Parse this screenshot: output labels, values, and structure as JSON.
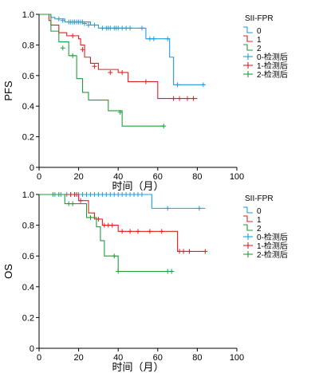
{
  "chart_data": [
    {
      "type": "line",
      "title": "",
      "xlabel": "时间（月）",
      "ylabel": "PFS",
      "xlim": [
        0,
        100
      ],
      "ylim": [
        0,
        1.0
      ],
      "xticks": [
        "0",
        "20",
        "40",
        "60",
        "80",
        "100"
      ],
      "yticks": [
        "0",
        "0.2",
        "0.4",
        "0.6",
        "0.8",
        "1.0"
      ],
      "grid": false,
      "legend_position": "top-right",
      "legend_title": "SII-FPR",
      "legend_entries": [
        "0",
        "1",
        "2",
        "0-检测后",
        "1-检测后",
        "2-检测后"
      ],
      "series": [
        {
          "name": "0",
          "color": "#1a9ee0",
          "steps": [
            [
              0,
              1.0
            ],
            [
              6,
              0.98
            ],
            [
              8,
              0.97
            ],
            [
              13,
              0.95
            ],
            [
              26,
              0.93
            ],
            [
              30,
              0.91
            ],
            [
              54,
              0.84
            ],
            [
              66,
              0.72
            ],
            [
              68,
              0.54
            ],
            [
              84,
              0.54
            ]
          ],
          "censored": [
            [
              10,
              0.97
            ],
            [
              12,
              0.96
            ],
            [
              15,
              0.95
            ],
            [
              16,
              0.95
            ],
            [
              17,
              0.95
            ],
            [
              18,
              0.95
            ],
            [
              19,
              0.95
            ],
            [
              20,
              0.95
            ],
            [
              21,
              0.95
            ],
            [
              22,
              0.95
            ],
            [
              23,
              0.94
            ],
            [
              25,
              0.93
            ],
            [
              28,
              0.93
            ],
            [
              32,
              0.91
            ],
            [
              34,
              0.91
            ],
            [
              35,
              0.91
            ],
            [
              36,
              0.91
            ],
            [
              38,
              0.91
            ],
            [
              39,
              0.91
            ],
            [
              40,
              0.91
            ],
            [
              42,
              0.91
            ],
            [
              44,
              0.91
            ],
            [
              46,
              0.91
            ],
            [
              52,
              0.91
            ],
            [
              56,
              0.84
            ],
            [
              58,
              0.84
            ],
            [
              65,
              0.84
            ],
            [
              70,
              0.54
            ],
            [
              83,
              0.54
            ]
          ]
        },
        {
          "name": "1",
          "color": "#e02020",
          "steps": [
            [
              0,
              1.0
            ],
            [
              5,
              0.96
            ],
            [
              6,
              0.93
            ],
            [
              10,
              0.88
            ],
            [
              14,
              0.86
            ],
            [
              20,
              0.84
            ],
            [
              21,
              0.8
            ],
            [
              23,
              0.72
            ],
            [
              26,
              0.68
            ],
            [
              30,
              0.64
            ],
            [
              40,
              0.62
            ],
            [
              45,
              0.56
            ],
            [
              60,
              0.45
            ],
            [
              80,
              0.45
            ]
          ],
          "censored": [
            [
              17,
              0.86
            ],
            [
              22,
              0.77
            ],
            [
              28,
              0.66
            ],
            [
              36,
              0.62
            ],
            [
              42,
              0.62
            ],
            [
              54,
              0.56
            ],
            [
              68,
              0.45
            ],
            [
              71,
              0.45
            ],
            [
              75,
              0.45
            ],
            [
              78,
              0.45
            ]
          ]
        },
        {
          "name": "2",
          "color": "#1f9e3a",
          "steps": [
            [
              0,
              1.0
            ],
            [
              6,
              0.89
            ],
            [
              10,
              0.82
            ],
            [
              15,
              0.73
            ],
            [
              19,
              0.58
            ],
            [
              22,
              0.49
            ],
            [
              25,
              0.44
            ],
            [
              35,
              0.37
            ],
            [
              42,
              0.27
            ],
            [
              63,
              0.27
            ]
          ],
          "censored": [
            [
              12,
              0.78
            ],
            [
              17,
              0.73
            ],
            [
              41,
              0.36
            ],
            [
              63,
              0.27
            ]
          ]
        }
      ]
    },
    {
      "type": "line",
      "title": "",
      "xlabel": "时间（月）",
      "ylabel": "OS",
      "xlim": [
        0,
        100
      ],
      "ylim": [
        0,
        1.0
      ],
      "xticks": [
        "0",
        "20",
        "40",
        "60",
        "80",
        "100"
      ],
      "yticks": [
        "0",
        "0.2",
        "0.4",
        "0.6",
        "0.8",
        "1.0"
      ],
      "grid": false,
      "legend_position": "top-right",
      "legend_title": "SII-FPR",
      "legend_entries": [
        "0",
        "1",
        "2",
        "0-检测后",
        "1-检测后",
        "2-检测后"
      ],
      "series": [
        {
          "name": "0",
          "color": "#1a9ee0",
          "steps": [
            [
              0,
              1.0
            ],
            [
              57,
              0.91
            ],
            [
              84,
              0.91
            ]
          ],
          "censored": [
            [
              8,
              1.0
            ],
            [
              11,
              1.0
            ],
            [
              14,
              1.0
            ],
            [
              16,
              1.0
            ],
            [
              18,
              1.0
            ],
            [
              20,
              1.0
            ],
            [
              22,
              1.0
            ],
            [
              24,
              1.0
            ],
            [
              26,
              1.0
            ],
            [
              28,
              1.0
            ],
            [
              30,
              1.0
            ],
            [
              32,
              1.0
            ],
            [
              34,
              1.0
            ],
            [
              36,
              1.0
            ],
            [
              38,
              1.0
            ],
            [
              40,
              1.0
            ],
            [
              42,
              1.0
            ],
            [
              44,
              1.0
            ],
            [
              46,
              1.0
            ],
            [
              48,
              1.0
            ],
            [
              50,
              1.0
            ],
            [
              52,
              1.0
            ],
            [
              65,
              0.91
            ],
            [
              81,
              0.91
            ]
          ]
        },
        {
          "name": "1",
          "color": "#e02020",
          "steps": [
            [
              0,
              1.0
            ],
            [
              20,
              0.96
            ],
            [
              25,
              0.88
            ],
            [
              28,
              0.84
            ],
            [
              32,
              0.8
            ],
            [
              40,
              0.76
            ],
            [
              70,
              0.63
            ],
            [
              84,
              0.63
            ]
          ],
          "censored": [
            [
              16,
              1.0
            ],
            [
              18,
              1.0
            ],
            [
              19,
              1.0
            ],
            [
              21,
              0.96
            ],
            [
              30,
              0.84
            ],
            [
              33,
              0.8
            ],
            [
              35,
              0.8
            ],
            [
              37,
              0.8
            ],
            [
              42,
              0.76
            ],
            [
              46,
              0.76
            ],
            [
              50,
              0.76
            ],
            [
              56,
              0.76
            ],
            [
              62,
              0.76
            ],
            [
              71,
              0.63
            ],
            [
              73,
              0.63
            ],
            [
              76,
              0.63
            ],
            [
              84,
              0.63
            ]
          ]
        },
        {
          "name": "2",
          "color": "#1f9e3a",
          "steps": [
            [
              0,
              1.0
            ],
            [
              13,
              0.94
            ],
            [
              24,
              0.85
            ],
            [
              29,
              0.79
            ],
            [
              31,
              0.7
            ],
            [
              33,
              0.6
            ],
            [
              40,
              0.5
            ],
            [
              67,
              0.5
            ]
          ],
          "censored": [
            [
              7,
              1.0
            ],
            [
              10,
              1.0
            ],
            [
              15,
              0.94
            ],
            [
              17,
              0.94
            ],
            [
              26,
              0.85
            ],
            [
              38,
              0.6
            ],
            [
              40,
              0.5
            ],
            [
              65,
              0.5
            ],
            [
              67,
              0.5
            ]
          ]
        }
      ]
    }
  ]
}
